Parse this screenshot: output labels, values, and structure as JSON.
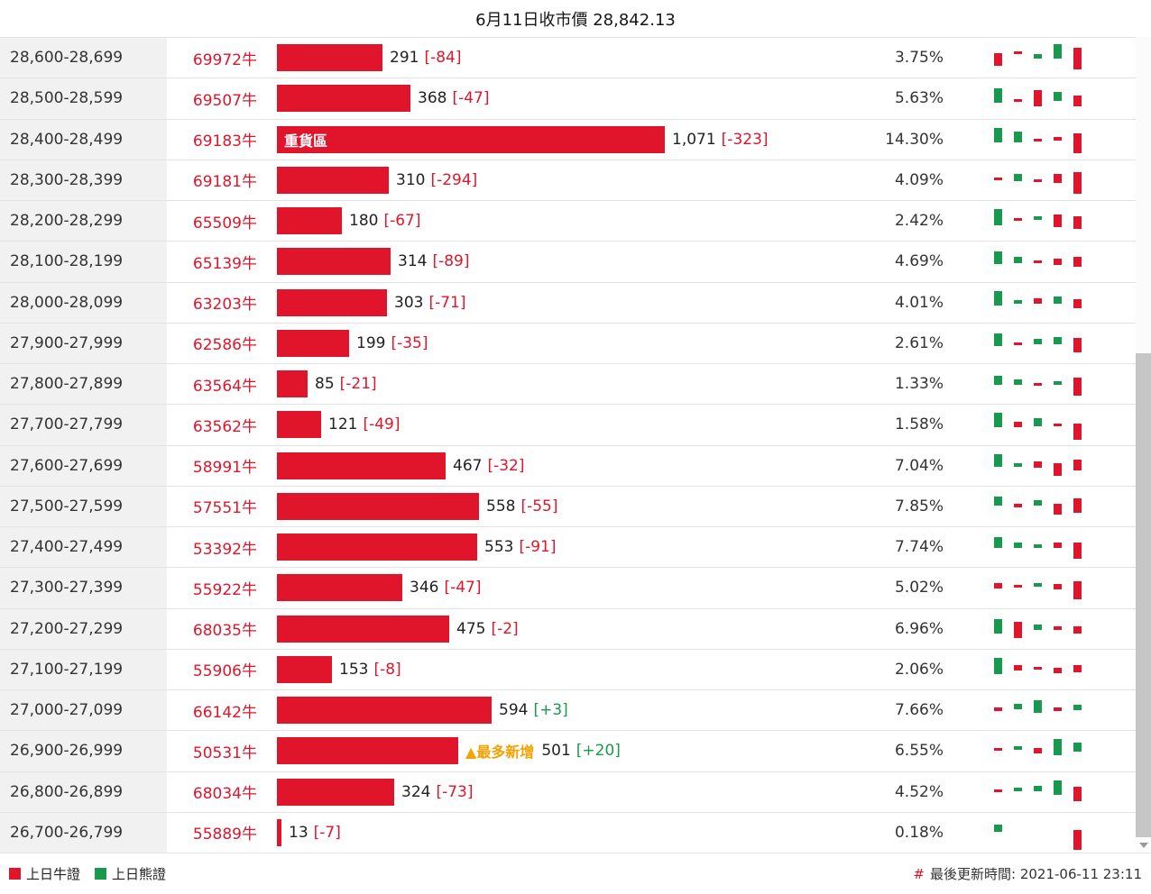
{
  "header": {
    "title": "6月11日收市價 28,842.13"
  },
  "legend": {
    "bull_label": "上日牛證",
    "bear_label": "上日熊證"
  },
  "footer": {
    "hash": "#",
    "updated_text": "最後更新時間: 2021-06-11 23:11"
  },
  "colors": {
    "red": "#e0152b",
    "green": "#17994e",
    "orange": "#f5a100"
  },
  "rows": [
    {
      "range": "28,600-28,699",
      "code": "69972牛",
      "value": 291,
      "value_display": "291",
      "change_display": "[-84]",
      "pct": "3.75%",
      "spark": [
        [
          0,
          "r",
          14,
          14
        ],
        [
          1,
          "r",
          12,
          3
        ],
        [
          2,
          "g",
          15,
          5
        ],
        [
          3,
          "g",
          4,
          16
        ],
        [
          4,
          "r",
          8,
          24
        ]
      ]
    },
    {
      "range": "28,500-28,599",
      "code": "69507牛",
      "value": 368,
      "value_display": "368",
      "change_display": "[-47]",
      "pct": "5.63%",
      "spark": [
        [
          0,
          "g",
          8,
          16
        ],
        [
          1,
          "r",
          20,
          3
        ],
        [
          2,
          "r",
          10,
          18
        ],
        [
          3,
          "g",
          12,
          10
        ],
        [
          4,
          "r",
          16,
          12
        ]
      ]
    },
    {
      "range": "28,400-28,499",
      "code": "69183牛",
      "value": 1071,
      "value_display": "1,071",
      "change_display": "[-323]",
      "pct": "14.30%",
      "tag": "重貨區",
      "spark": [
        [
          0,
          "g",
          6,
          16
        ],
        [
          1,
          "g",
          10,
          12
        ],
        [
          2,
          "r",
          18,
          3
        ],
        [
          3,
          "r",
          16,
          4
        ],
        [
          4,
          "r",
          12,
          22
        ]
      ]
    },
    {
      "range": "28,300-28,399",
      "code": "69181牛",
      "value": 310,
      "value_display": "310",
      "change_display": "[-294]",
      "pct": "4.09%",
      "spark": [
        [
          0,
          "r",
          16,
          3
        ],
        [
          1,
          "g",
          12,
          8
        ],
        [
          2,
          "r",
          18,
          3
        ],
        [
          3,
          "r",
          12,
          10
        ],
        [
          4,
          "r",
          10,
          24
        ]
      ]
    },
    {
      "range": "28,200-28,299",
      "code": "65509牛",
      "value": 180,
      "value_display": "180",
      "change_display": "[-67]",
      "pct": "2.42%",
      "spark": [
        [
          0,
          "g",
          6,
          18
        ],
        [
          1,
          "r",
          16,
          3
        ],
        [
          2,
          "g",
          14,
          4
        ],
        [
          3,
          "r",
          12,
          14
        ],
        [
          4,
          "r",
          14,
          14
        ]
      ]
    },
    {
      "range": "28,100-28,199",
      "code": "65139牛",
      "value": 314,
      "value_display": "314",
      "change_display": "[-89]",
      "pct": "4.69%",
      "spark": [
        [
          0,
          "g",
          8,
          14
        ],
        [
          1,
          "g",
          14,
          7
        ],
        [
          2,
          "r",
          18,
          3
        ],
        [
          3,
          "r",
          16,
          7
        ],
        [
          4,
          "r",
          14,
          11
        ]
      ]
    },
    {
      "range": "28,000-28,099",
      "code": "63203牛",
      "value": 303,
      "value_display": "303",
      "change_display": "[-71]",
      "pct": "4.01%",
      "spark": [
        [
          0,
          "g",
          6,
          16
        ],
        [
          1,
          "g",
          16,
          4
        ],
        [
          2,
          "r",
          14,
          6
        ],
        [
          3,
          "g",
          12,
          8
        ],
        [
          4,
          "r",
          15,
          10
        ]
      ]
    },
    {
      "range": "27,900-27,999",
      "code": "62586牛",
      "value": 199,
      "value_display": "199",
      "change_display": "[-35]",
      "pct": "2.61%",
      "spark": [
        [
          0,
          "g",
          8,
          14
        ],
        [
          1,
          "r",
          18,
          3
        ],
        [
          2,
          "g",
          14,
          6
        ],
        [
          3,
          "g",
          12,
          8
        ],
        [
          4,
          "r",
          13,
          16
        ]
      ]
    },
    {
      "range": "27,800-27,899",
      "code": "63564牛",
      "value": 85,
      "value_display": "85",
      "change_display": "[-21]",
      "pct": "1.33%",
      "spark": [
        [
          0,
          "g",
          10,
          10
        ],
        [
          1,
          "g",
          14,
          6
        ],
        [
          2,
          "r",
          18,
          3
        ],
        [
          3,
          "g",
          16,
          4
        ],
        [
          4,
          "r",
          12,
          20
        ]
      ]
    },
    {
      "range": "27,700-27,799",
      "code": "63562牛",
      "value": 121,
      "value_display": "121",
      "change_display": "[-49]",
      "pct": "1.58%",
      "spark": [
        [
          0,
          "g",
          6,
          16
        ],
        [
          1,
          "r",
          16,
          6
        ],
        [
          2,
          "g",
          12,
          9
        ],
        [
          3,
          "r",
          18,
          3
        ],
        [
          4,
          "r",
          18,
          18
        ]
      ]
    },
    {
      "range": "27,600-27,699",
      "code": "58991牛",
      "value": 467,
      "value_display": "467",
      "change_display": "[-32]",
      "pct": "7.04%",
      "spark": [
        [
          0,
          "g",
          6,
          14
        ],
        [
          1,
          "g",
          16,
          4
        ],
        [
          2,
          "r",
          14,
          7
        ],
        [
          3,
          "r",
          16,
          14
        ],
        [
          4,
          "r",
          12,
          12
        ]
      ]
    },
    {
      "range": "27,500-27,599",
      "code": "57551牛",
      "value": 558,
      "value_display": "558",
      "change_display": "[-55]",
      "pct": "7.85%",
      "spark": [
        [
          0,
          "g",
          8,
          10
        ],
        [
          1,
          "r",
          16,
          4
        ],
        [
          2,
          "g",
          12,
          6
        ],
        [
          3,
          "r",
          16,
          12
        ],
        [
          4,
          "r",
          10,
          16
        ]
      ]
    },
    {
      "range": "27,400-27,499",
      "code": "53392牛",
      "value": 553,
      "value_display": "553",
      "change_display": "[-91]",
      "pct": "7.74%",
      "spark": [
        [
          0,
          "g",
          8,
          12
        ],
        [
          1,
          "g",
          14,
          6
        ],
        [
          2,
          "g",
          16,
          4
        ],
        [
          3,
          "r",
          14,
          6
        ],
        [
          4,
          "r",
          14,
          18
        ]
      ]
    },
    {
      "range": "27,300-27,399",
      "code": "55922牛",
      "value": 346,
      "value_display": "346",
      "change_display": "[-47]",
      "pct": "5.02%",
      "spark": [
        [
          0,
          "r",
          14,
          6
        ],
        [
          1,
          "r",
          16,
          3
        ],
        [
          2,
          "g",
          14,
          4
        ],
        [
          3,
          "r",
          15,
          6
        ],
        [
          4,
          "r",
          12,
          20
        ]
      ]
    },
    {
      "range": "27,200-27,299",
      "code": "68035牛",
      "value": 475,
      "value_display": "475",
      "change_display": "[-2]",
      "pct": "6.96%",
      "spark": [
        [
          0,
          "g",
          8,
          16
        ],
        [
          1,
          "r",
          11,
          18
        ],
        [
          2,
          "g",
          14,
          6
        ],
        [
          3,
          "r",
          16,
          4
        ],
        [
          4,
          "r",
          16,
          8
        ]
      ]
    },
    {
      "range": "27,100-27,199",
      "code": "55906牛",
      "value": 153,
      "value_display": "153",
      "change_display": "[-8]",
      "pct": "2.06%",
      "spark": [
        [
          0,
          "g",
          6,
          18
        ],
        [
          1,
          "r",
          14,
          6
        ],
        [
          2,
          "r",
          16,
          3
        ],
        [
          3,
          "r",
          17,
          6
        ],
        [
          4,
          "r",
          14,
          8
        ]
      ]
    },
    {
      "range": "27,000-27,099",
      "code": "66142牛",
      "value": 594,
      "value_display": "594",
      "change_display": "[+3]",
      "pct": "7.66%",
      "spark": [
        [
          0,
          "r",
          16,
          4
        ],
        [
          1,
          "g",
          12,
          6
        ],
        [
          2,
          "g",
          8,
          14
        ],
        [
          3,
          "r",
          16,
          4
        ],
        [
          4,
          "g",
          13,
          6
        ]
      ]
    },
    {
      "range": "26,900-26,999",
      "code": "50531牛",
      "value": 501,
      "value_display": "501",
      "change_display": "[+20]",
      "pct": "6.55%",
      "badge": "▲最多新增",
      "spark": [
        [
          0,
          "r",
          16,
          3
        ],
        [
          1,
          "g",
          14,
          4
        ],
        [
          2,
          "r",
          16,
          6
        ],
        [
          3,
          "g",
          6,
          18
        ],
        [
          4,
          "g",
          10,
          10
        ]
      ]
    },
    {
      "range": "26,800-26,899",
      "code": "68034牛",
      "value": 324,
      "value_display": "324",
      "change_display": "[-73]",
      "pct": "4.52%",
      "spark": [
        [
          0,
          "r",
          16,
          3
        ],
        [
          1,
          "g",
          14,
          4
        ],
        [
          2,
          "g",
          12,
          6
        ],
        [
          3,
          "g",
          6,
          16
        ],
        [
          4,
          "r",
          13,
          16
        ]
      ]
    },
    {
      "range": "26,700-26,799",
      "code": "55889牛",
      "value": 13,
      "value_display": "13",
      "change_display": "[-7]",
      "pct": "0.18%",
      "spark": [
        [
          0,
          "g",
          10,
          8
        ],
        [
          4,
          "r",
          16,
          22
        ]
      ]
    }
  ]
}
